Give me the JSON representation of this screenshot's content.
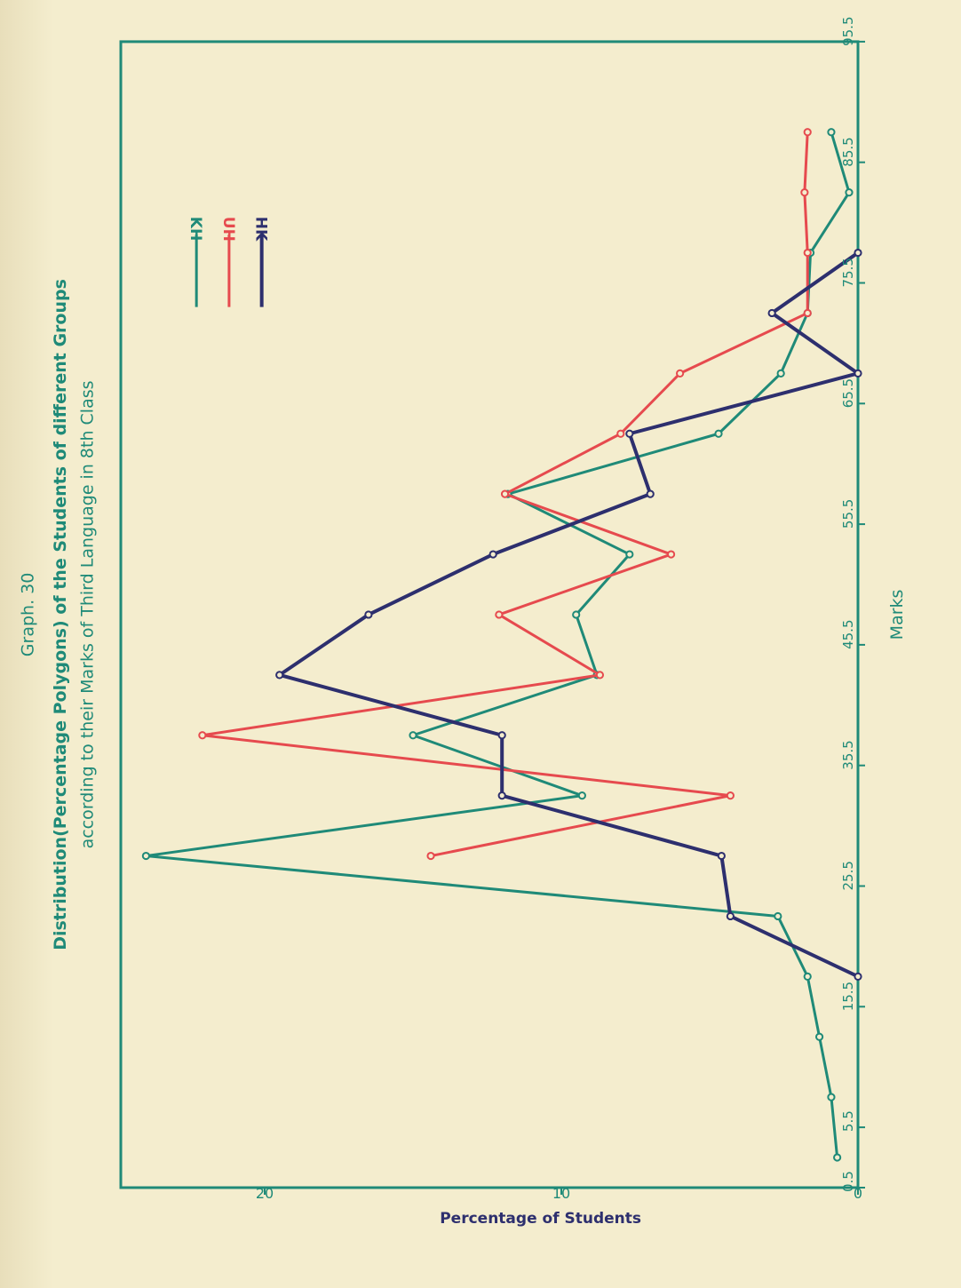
{
  "chart_data": {
    "type": "line",
    "graph_number": "Graph. 30",
    "title": "Distribution (Percentage Polygons) of the Students of different Groups according to their Marks of Third Language in 8th Class",
    "title_line1": "Distribution(Percentage Polygons) of the Students of different Groups",
    "title_line2": "according to their Marks of Third Language in 8th Class",
    "xlabel": "Marks",
    "ylabel": "Percentage of Students",
    "xlim": [
      0.5,
      95.5
    ],
    "ylim": [
      0,
      24.5
    ],
    "x_ticks": [
      "0.5",
      "5.5",
      "15.5",
      "25.5",
      "35.5",
      "45.5",
      "55.5",
      "65.5",
      "75.5",
      "85.5",
      "95.5"
    ],
    "y_ticks": [
      "0",
      "10",
      "20"
    ],
    "legend_position": "top-right",
    "grid": false,
    "series": [
      {
        "name": "KH",
        "color": "#1f8a78",
        "points": [
          [
            3,
            0.7
          ],
          [
            8,
            0.9
          ],
          [
            13,
            1.3
          ],
          [
            18,
            1.7
          ],
          [
            23,
            2.7
          ],
          [
            28,
            24
          ],
          [
            33,
            9.3
          ],
          [
            38,
            15
          ],
          [
            43,
            8.8
          ],
          [
            48,
            9.5
          ],
          [
            53,
            7.7
          ],
          [
            58,
            11.8
          ],
          [
            63,
            4.7
          ],
          [
            68,
            2.6
          ],
          [
            73,
            1.7
          ],
          [
            78,
            1.6
          ],
          [
            83,
            0.3
          ],
          [
            88,
            0.9
          ]
        ]
      },
      {
        "name": "UH",
        "color": "#e64a4e",
        "points": [
          [
            28,
            14.4
          ],
          [
            33,
            4.3
          ],
          [
            38,
            22.1
          ],
          [
            43,
            8.7
          ],
          [
            48,
            12.1
          ],
          [
            53,
            6.3
          ],
          [
            58,
            11.9
          ],
          [
            63,
            8
          ],
          [
            68,
            6
          ],
          [
            73,
            1.7
          ],
          [
            78,
            1.7
          ],
          [
            83,
            1.8
          ],
          [
            88,
            1.7
          ]
        ]
      },
      {
        "name": "HK",
        "color": "#2d2f6e",
        "points": [
          [
            18,
            0
          ],
          [
            23,
            4.3
          ],
          [
            28,
            4.6
          ],
          [
            33,
            12
          ],
          [
            38,
            12
          ],
          [
            43,
            19.5
          ],
          [
            48,
            16.5
          ],
          [
            53,
            12.3
          ],
          [
            58,
            7
          ],
          [
            63,
            7.7
          ],
          [
            68,
            0
          ],
          [
            73,
            2.9
          ],
          [
            78,
            0
          ]
        ]
      }
    ]
  }
}
